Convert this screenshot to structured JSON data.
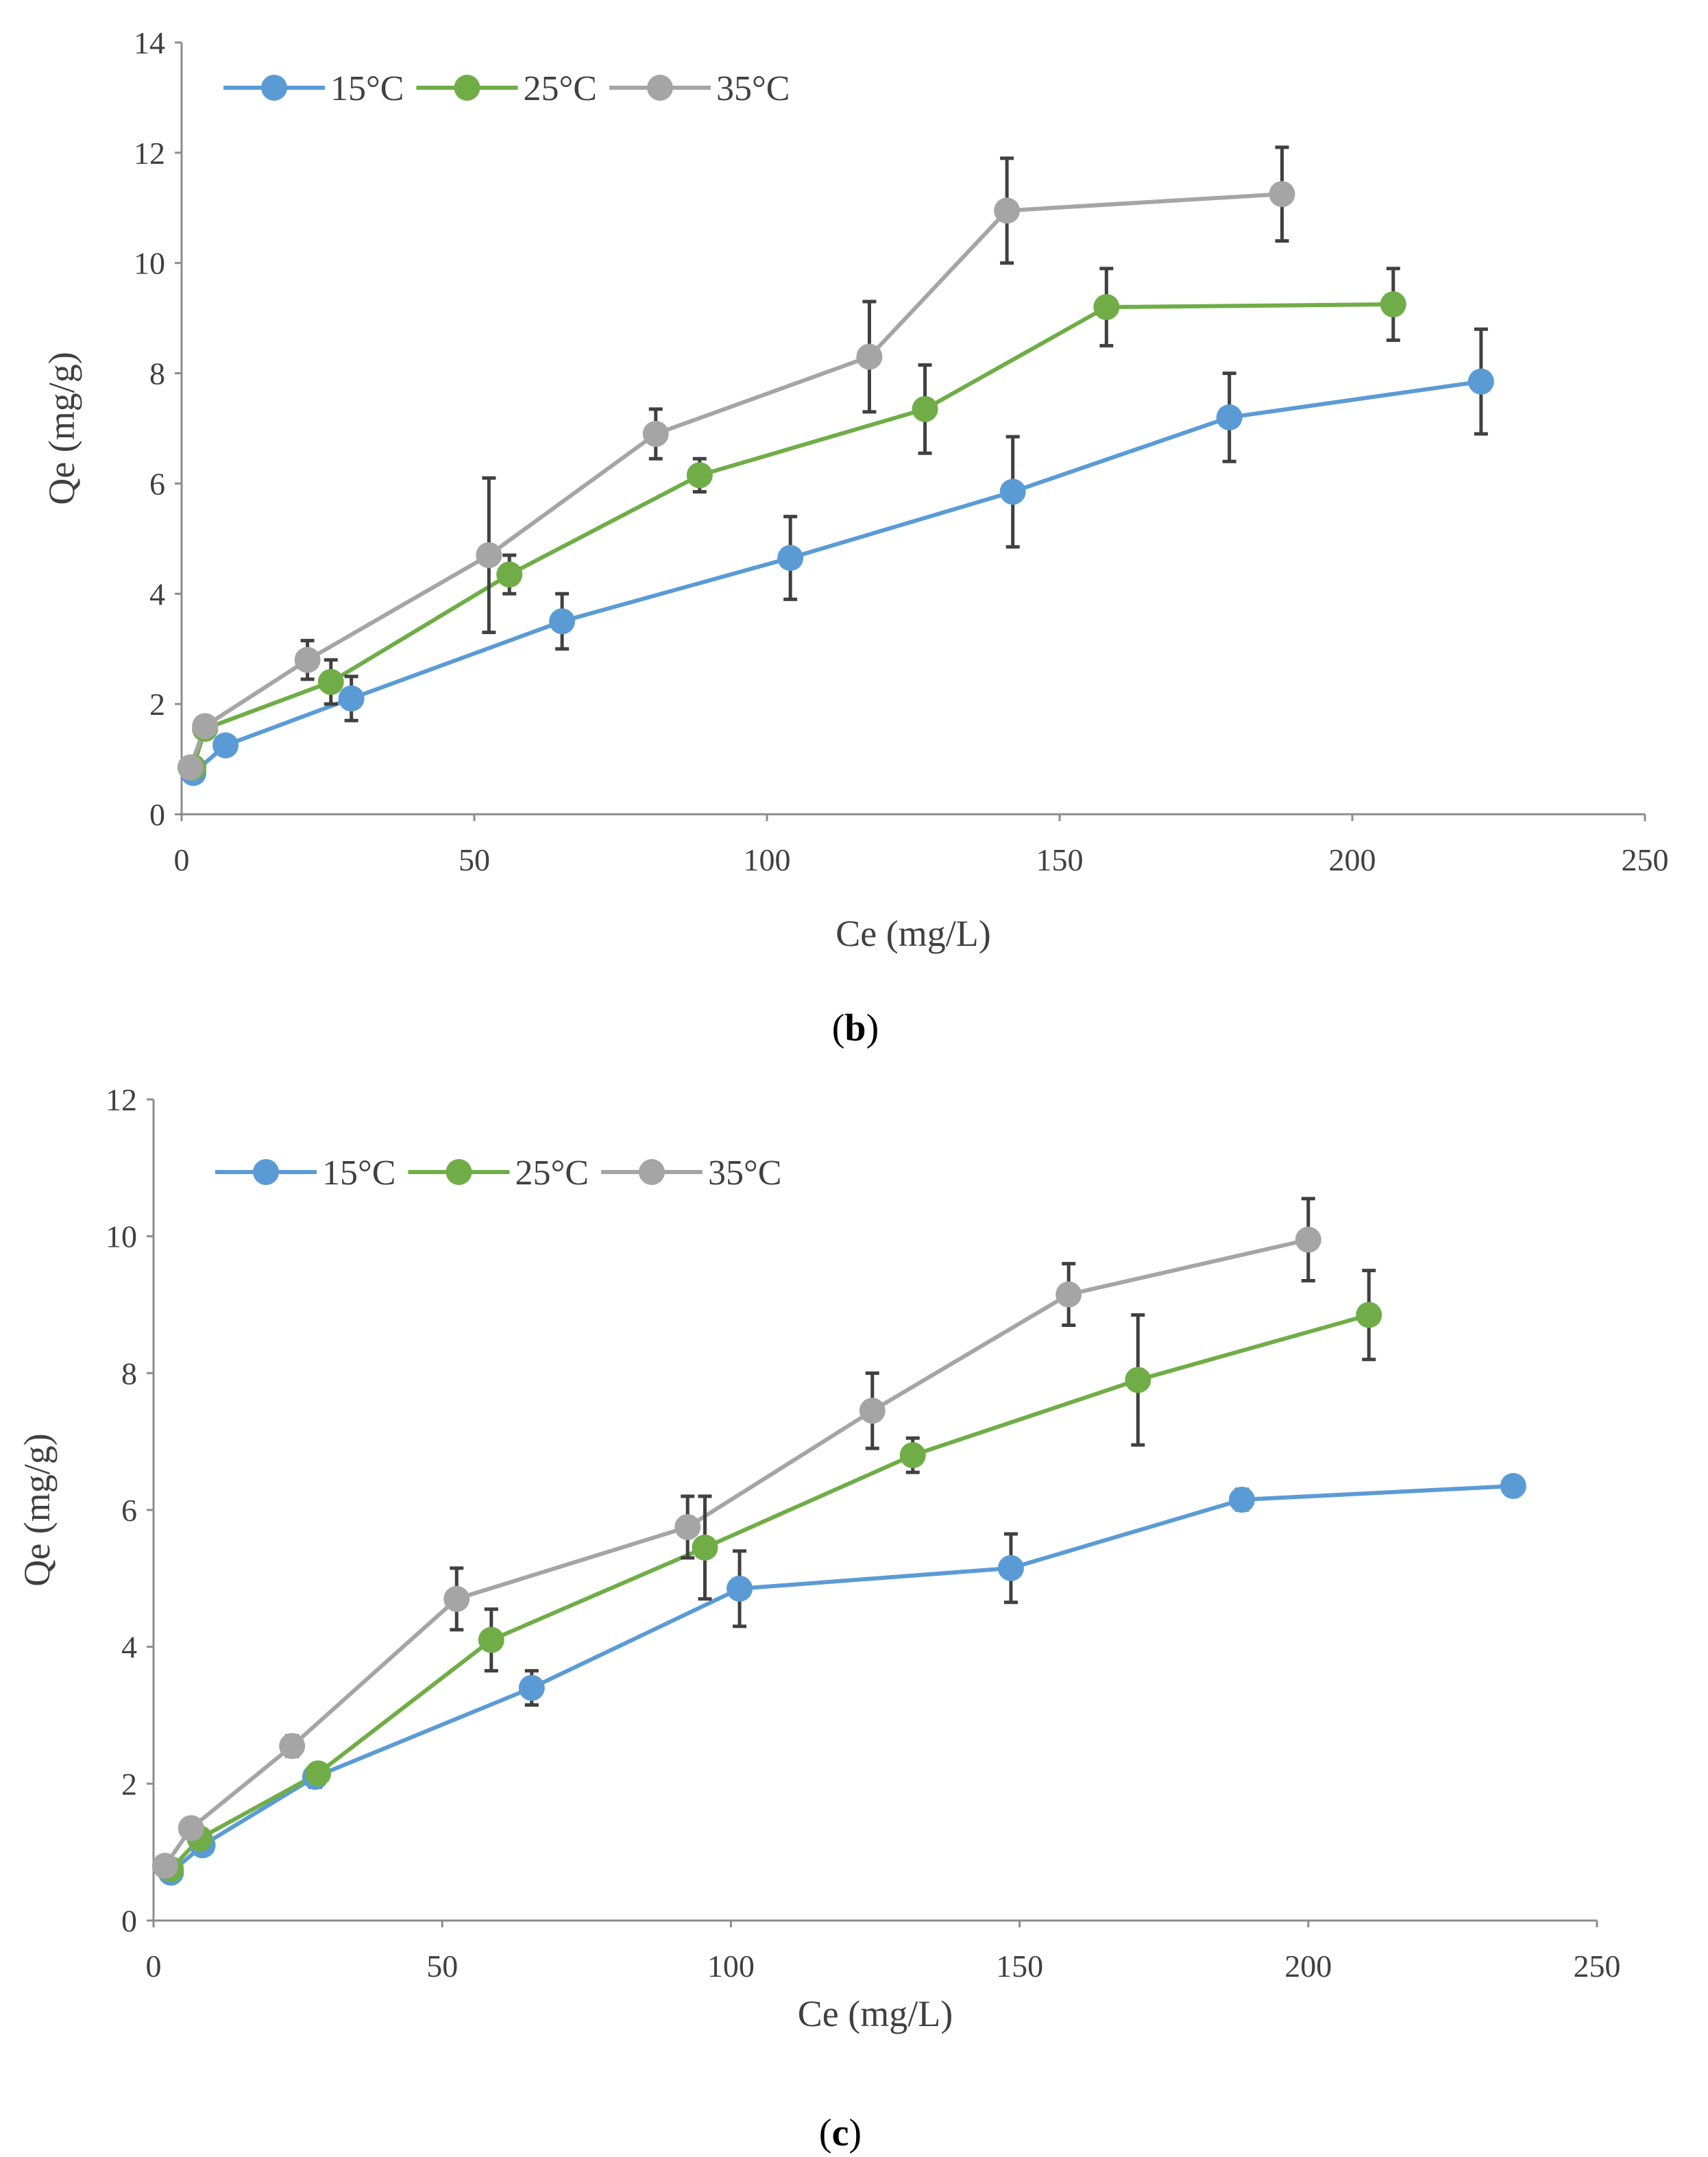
{
  "panels": [
    {
      "label_open": "(",
      "label_letter": "b",
      "label_close": ")"
    },
    {
      "label_open": "(",
      "label_letter": "c",
      "label_close": ")"
    }
  ],
  "colors": {
    "series": [
      "#5b9bd5",
      "#70ad47",
      "#a5a5a5"
    ],
    "axis": "#8c8c8c",
    "text": "#404040",
    "error_bar": "#404040"
  },
  "chart_data": [
    {
      "type": "line",
      "panel": "b",
      "title": "",
      "xlabel": "Ce (mg/L)",
      "ylabel": "Qe (mg/g)",
      "xlim": [
        0,
        250
      ],
      "ylim": [
        0,
        14
      ],
      "xticks": [
        0,
        50,
        100,
        150,
        200,
        250
      ],
      "yticks": [
        0,
        2,
        4,
        6,
        8,
        10,
        12,
        14
      ],
      "grid": false,
      "legend": "top-left",
      "series": [
        {
          "name": "15°C",
          "x": [
            2,
            7.5,
            29,
            65,
            104,
            142,
            179,
            222
          ],
          "y": [
            0.75,
            1.25,
            2.1,
            3.5,
            4.65,
            5.85,
            7.2,
            7.85
          ],
          "err": [
            0.1,
            0.1,
            0.4,
            0.5,
            0.75,
            1.0,
            0.8,
            0.95
          ]
        },
        {
          "name": "25°C",
          "x": [
            2,
            4,
            25.5,
            56,
            88.5,
            127,
            158,
            207
          ],
          "y": [
            0.85,
            1.55,
            2.4,
            4.35,
            6.15,
            7.35,
            9.2,
            9.25
          ],
          "err": [
            0.1,
            0.1,
            0.4,
            0.35,
            0.3,
            0.8,
            0.7,
            0.65
          ]
        },
        {
          "name": "35°C",
          "x": [
            1.5,
            4,
            21.5,
            52.5,
            81,
            117.5,
            141,
            188
          ],
          "y": [
            0.85,
            1.6,
            2.8,
            4.7,
            6.9,
            8.3,
            10.95,
            11.25
          ],
          "err": [
            0.1,
            0.1,
            0.35,
            1.4,
            0.45,
            1.0,
            0.95,
            0.85
          ]
        }
      ]
    },
    {
      "type": "line",
      "panel": "c",
      "title": "",
      "xlabel": "Ce (mg/L)",
      "ylabel": "Qe (mg/g)",
      "xlim": [
        0,
        250
      ],
      "ylim": [
        0,
        12
      ],
      "xticks": [
        0,
        50,
        100,
        150,
        200,
        250
      ],
      "yticks": [
        0,
        2,
        4,
        6,
        8,
        10,
        12
      ],
      "grid": false,
      "legend": "top-left",
      "series": [
        {
          "name": "15°C",
          "x": [
            3,
            8.5,
            28,
            65.5,
            101.5,
            148.5,
            188.5,
            235.5
          ],
          "y": [
            0.7,
            1.1,
            2.1,
            3.4,
            4.85,
            5.15,
            6.15,
            6.35
          ],
          "err": [
            0.1,
            0.1,
            0.15,
            0.25,
            0.55,
            0.5,
            0.15,
            0.1
          ]
        },
        {
          "name": "25°C",
          "x": [
            3,
            8,
            28.5,
            58.5,
            95.5,
            131.5,
            170.5,
            210.5
          ],
          "y": [
            0.75,
            1.2,
            2.15,
            4.1,
            5.45,
            6.8,
            7.9,
            8.85
          ],
          "err": [
            0.1,
            0.1,
            0.1,
            0.45,
            0.75,
            0.25,
            0.95,
            0.65
          ]
        },
        {
          "name": "35°C",
          "x": [
            2,
            6.5,
            24,
            52.5,
            92.5,
            124.5,
            158.5,
            200
          ],
          "y": [
            0.8,
            1.35,
            2.55,
            4.7,
            5.75,
            7.45,
            9.15,
            9.95
          ],
          "err": [
            0.1,
            0.1,
            0.15,
            0.45,
            0.45,
            0.55,
            0.45,
            0.6
          ]
        }
      ]
    }
  ]
}
